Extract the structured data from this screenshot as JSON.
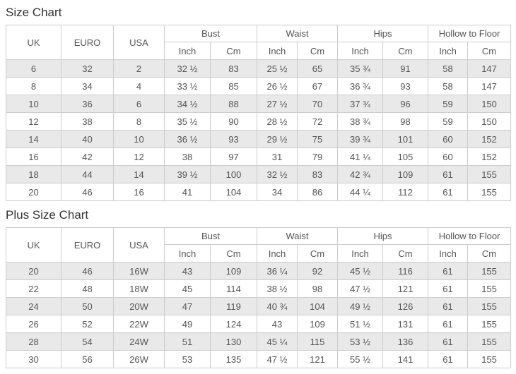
{
  "colors": {
    "border": "#cccccc",
    "row-shaded": "#e9e9e9",
    "row-plain": "#ffffff",
    "text": "#555555",
    "title": "#333333",
    "bg": "#ffffff"
  },
  "table_headers": {
    "uk": "UK",
    "euro": "EURO",
    "usa": "USA",
    "bust": "Bust",
    "waist": "Waist",
    "hips": "Hips",
    "hollow_to_floor": "Hollow to Floor",
    "inch": "Inch",
    "cm": "Cm"
  },
  "size_chart": {
    "title": "Size Chart",
    "rows": [
      [
        "6",
        "32",
        "2",
        "32 ½",
        "83",
        "25 ½",
        "65",
        "35 ¾",
        "91",
        "58",
        "147"
      ],
      [
        "8",
        "34",
        "4",
        "33 ½",
        "85",
        "26 ½",
        "67",
        "36 ¾",
        "93",
        "58",
        "147"
      ],
      [
        "10",
        "36",
        "6",
        "34 ½",
        "88",
        "27 ½",
        "70",
        "37 ¾",
        "96",
        "59",
        "150"
      ],
      [
        "12",
        "38",
        "8",
        "35 ½",
        "90",
        "28 ½",
        "72",
        "38 ¾",
        "98",
        "59",
        "150"
      ],
      [
        "14",
        "40",
        "10",
        "36 ½",
        "93",
        "29 ½",
        "75",
        "39 ¾",
        "101",
        "60",
        "152"
      ],
      [
        "16",
        "42",
        "12",
        "38",
        "97",
        "31",
        "79",
        "41 ¼",
        "105",
        "60",
        "152"
      ],
      [
        "18",
        "44",
        "14",
        "39 ½",
        "100",
        "32 ½",
        "83",
        "42 ¾",
        "109",
        "61",
        "155"
      ],
      [
        "20",
        "46",
        "16",
        "41",
        "104",
        "34",
        "86",
        "44 ¼",
        "112",
        "61",
        "155"
      ]
    ]
  },
  "plus_size_chart": {
    "title": "Plus Size Chart",
    "rows": [
      [
        "20",
        "46",
        "16W",
        "43",
        "109",
        "36 ¼",
        "92",
        "45 ½",
        "116",
        "61",
        "155"
      ],
      [
        "22",
        "48",
        "18W",
        "45",
        "114",
        "38 ½",
        "98",
        "47 ½",
        "121",
        "61",
        "155"
      ],
      [
        "24",
        "50",
        "20W",
        "47",
        "119",
        "40 ¾",
        "104",
        "49 ½",
        "126",
        "61",
        "155"
      ],
      [
        "26",
        "52",
        "22W",
        "49",
        "124",
        "43",
        "109",
        "51 ½",
        "131",
        "61",
        "155"
      ],
      [
        "28",
        "54",
        "24W",
        "51",
        "130",
        "45 ¼",
        "115",
        "53 ½",
        "136",
        "61",
        "155"
      ],
      [
        "30",
        "56",
        "26W",
        "53",
        "135",
        "47 ½",
        "121",
        "55 ½",
        "141",
        "61",
        "155"
      ]
    ]
  }
}
